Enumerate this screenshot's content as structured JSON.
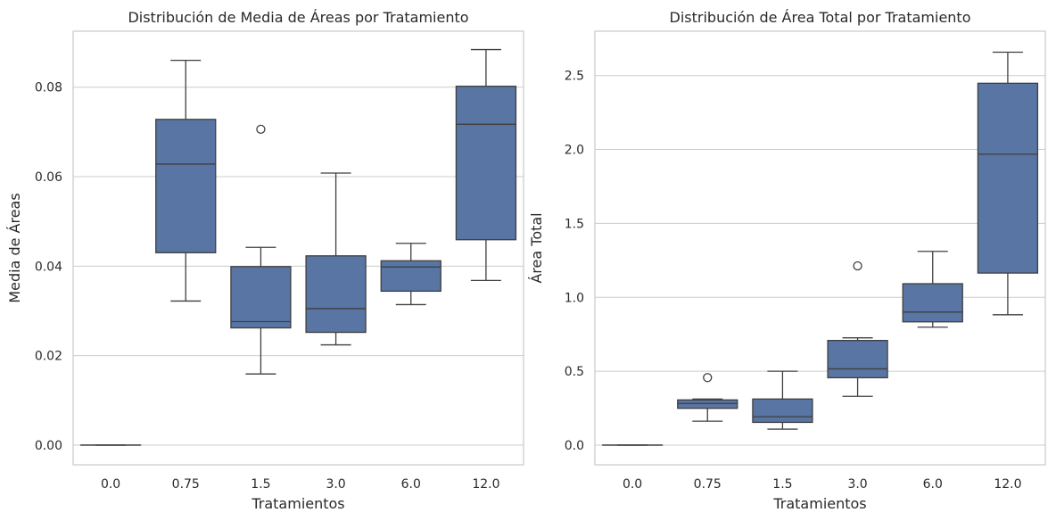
{
  "colors": {
    "box_fill": "#5875a4",
    "line": "#3f3f3f",
    "grid": "#cccccc"
  },
  "chart_data": [
    {
      "type": "box",
      "title": "Distribución de Media de Áreas por Tratamiento",
      "xlabel": "Tratamientos",
      "ylabel": "Media de Áreas",
      "categories": [
        "0.0",
        "0.75",
        "1.5",
        "3.0",
        "6.0",
        "12.0"
      ],
      "ylim": [
        -0.0044,
        0.0925
      ],
      "yticks": [
        0.0,
        0.02,
        0.04,
        0.06,
        0.08
      ],
      "ytick_labels": [
        "0.00",
        "0.02",
        "0.04",
        "0.06",
        "0.08"
      ],
      "grid": "horizontal",
      "boxes": [
        {
          "whislo": 0.0,
          "q1": 0.0,
          "med": 0.0,
          "q3": 0.0,
          "whishi": 0.0,
          "fliers": []
        },
        {
          "whislo": 0.0322,
          "q1": 0.043,
          "med": 0.0628,
          "q3": 0.0728,
          "whishi": 0.086,
          "fliers": []
        },
        {
          "whislo": 0.0159,
          "q1": 0.0262,
          "med": 0.0276,
          "q3": 0.0399,
          "whishi": 0.0442,
          "fliers": [
            0.0706
          ]
        },
        {
          "whislo": 0.0224,
          "q1": 0.0252,
          "med": 0.0305,
          "q3": 0.0423,
          "whishi": 0.0608,
          "fliers": []
        },
        {
          "whislo": 0.0314,
          "q1": 0.0344,
          "med": 0.0398,
          "q3": 0.0412,
          "whishi": 0.0451,
          "fliers": []
        },
        {
          "whislo": 0.0368,
          "q1": 0.0459,
          "med": 0.0717,
          "q3": 0.0802,
          "whishi": 0.0884,
          "fliers": []
        }
      ]
    },
    {
      "type": "box",
      "title": "Distribución de Área Total por Tratamiento",
      "xlabel": "Tratamientos",
      "ylabel": "Área Total",
      "categories": [
        "0.0",
        "0.75",
        "1.5",
        "3.0",
        "6.0",
        "12.0"
      ],
      "ylim": [
        -0.133,
        2.8
      ],
      "yticks": [
        0.0,
        0.5,
        1.0,
        1.5,
        2.0,
        2.5
      ],
      "ytick_labels": [
        "0.0",
        "0.5",
        "1.0",
        "1.5",
        "2.0",
        "2.5"
      ],
      "grid": "horizontal",
      "boxes": [
        {
          "whislo": 0.0,
          "q1": 0.0,
          "med": 0.0,
          "q3": 0.0,
          "whishi": 0.0,
          "fliers": []
        },
        {
          "whislo": 0.162,
          "q1": 0.249,
          "med": 0.282,
          "q3": 0.306,
          "whishi": 0.312,
          "fliers": [
            0.457
          ]
        },
        {
          "whislo": 0.108,
          "q1": 0.154,
          "med": 0.192,
          "q3": 0.312,
          "whishi": 0.5,
          "fliers": []
        },
        {
          "whislo": 0.33,
          "q1": 0.456,
          "med": 0.516,
          "q3": 0.708,
          "whishi": 0.726,
          "fliers": [
            1.213
          ]
        },
        {
          "whislo": 0.798,
          "q1": 0.834,
          "med": 0.9,
          "q3": 1.092,
          "whishi": 1.311,
          "fliers": []
        },
        {
          "whislo": 0.882,
          "q1": 1.164,
          "med": 1.968,
          "q3": 2.448,
          "whishi": 2.658,
          "fliers": []
        }
      ]
    }
  ]
}
